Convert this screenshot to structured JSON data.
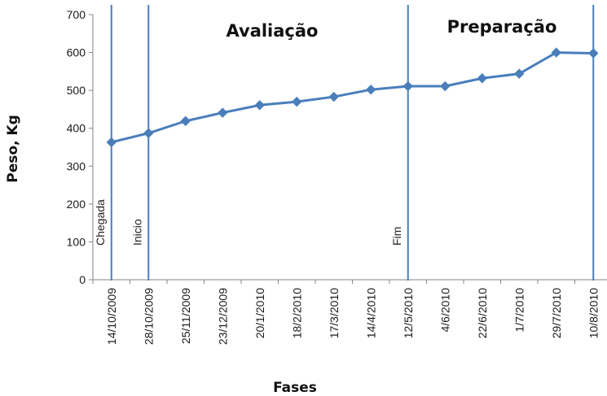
{
  "chart_data": {
    "type": "line",
    "xlabel": "Fases",
    "ylabel": "Peso, Kg",
    "ylim": [
      0,
      700
    ],
    "yticks": [
      0,
      100,
      200,
      300,
      400,
      500,
      600,
      700
    ],
    "grid": false,
    "categories": [
      "14/10/2009",
      "28/10/2009",
      "25/11/2009",
      "23/12/2009",
      "20/1/2010",
      "18/2/2010",
      "17/3/2010",
      "14/4/2010",
      "12/5/2010",
      "4/6/2010",
      "22/6/2010",
      "1/7/2010",
      "29/7/2010",
      "10/8/2010"
    ],
    "series": [
      {
        "values": [
          363,
          387,
          419,
          441,
          461,
          470,
          483,
          502,
          511,
          511,
          532,
          544,
          600,
          598
        ]
      }
    ],
    "line_color": "#4a7ebb",
    "marker": "diamond",
    "vertical_markers": [
      {
        "category": "14/10/2009",
        "label": "Chegada"
      },
      {
        "category": "28/10/2009",
        "label": "Inicio"
      },
      {
        "category": "12/5/2010",
        "label": "Fim"
      },
      {
        "category": "10/8/2010",
        "label": ""
      }
    ],
    "phases": [
      "Avaliação",
      "Preparação"
    ]
  }
}
